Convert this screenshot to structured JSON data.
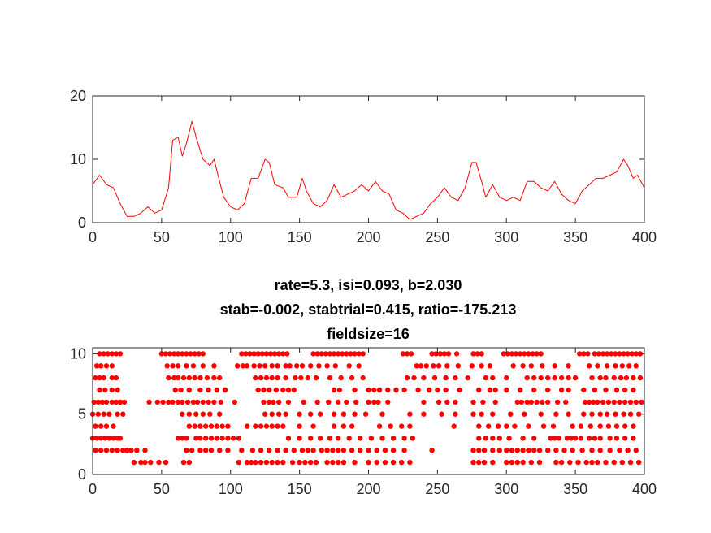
{
  "chart_data": [
    {
      "type": "line",
      "xlim": [
        0,
        400
      ],
      "ylim": [
        0,
        20
      ],
      "xticks": [
        0,
        50,
        100,
        150,
        200,
        250,
        300,
        350,
        400
      ],
      "yticks": [
        0,
        10,
        20
      ],
      "color": "#ff0000",
      "grid": false,
      "x": [
        0,
        5,
        10,
        15,
        20,
        25,
        30,
        35,
        40,
        45,
        50,
        55,
        58,
        62,
        65,
        68,
        72,
        75,
        80,
        85,
        88,
        92,
        95,
        100,
        105,
        110,
        115,
        120,
        125,
        128,
        132,
        138,
        142,
        148,
        152,
        155,
        160,
        165,
        170,
        175,
        180,
        185,
        190,
        195,
        200,
        205,
        210,
        215,
        220,
        225,
        230,
        235,
        240,
        245,
        250,
        255,
        260,
        265,
        270,
        275,
        278,
        282,
        285,
        290,
        295,
        300,
        305,
        310,
        315,
        320,
        325,
        330,
        335,
        340,
        345,
        350,
        355,
        360,
        365,
        370,
        375,
        380,
        385,
        388,
        392,
        395,
        400
      ],
      "y": [
        6,
        7.5,
        6,
        5.5,
        3,
        1,
        1,
        1.5,
        2.5,
        1.5,
        2,
        5.5,
        13,
        13.5,
        10.5,
        12.5,
        16,
        13.5,
        10,
        9,
        10,
        6.5,
        4,
        2.5,
        2,
        3,
        7,
        7,
        10,
        9.5,
        6,
        5.5,
        4,
        4,
        7,
        5,
        3,
        2.5,
        3.5,
        6,
        4,
        4.5,
        5,
        6,
        5,
        6.5,
        5,
        4.5,
        2,
        1.5,
        0.5,
        1,
        1.5,
        3,
        4,
        5.5,
        4,
        3.5,
        5.5,
        9.5,
        9.5,
        6.5,
        4,
        6,
        4,
        3.5,
        4,
        3.5,
        6.5,
        6.5,
        5.5,
        5,
        6.5,
        4.5,
        3.5,
        3,
        5,
        6,
        7,
        7,
        7.5,
        8,
        10,
        9,
        7,
        7.5,
        5.5
      ]
    },
    {
      "type": "scatter",
      "title": [
        "rate=5.3, isi=0.093, b=2.030",
        "stab=-0.002, stabtrial=0.415, ratio=-175.213",
        "fieldsize=16"
      ],
      "xlim": [
        0,
        400
      ],
      "ylim": [
        0,
        10.5
      ],
      "xticks": [
        0,
        50,
        100,
        150,
        200,
        250,
        300,
        350,
        400
      ],
      "yticks": [
        0,
        5,
        10
      ],
      "color": "#ff0000",
      "grid": false,
      "series": [
        {
          "y": 10,
          "x": [
            5,
            8,
            11,
            14,
            17,
            20,
            50,
            53,
            56,
            59,
            62,
            65,
            68,
            71,
            74,
            77,
            80,
            108,
            111,
            114,
            117,
            120,
            123,
            126,
            129,
            132,
            135,
            138,
            141,
            160,
            163,
            166,
            169,
            172,
            175,
            178,
            181,
            184,
            187,
            190,
            193,
            196,
            225,
            228,
            231,
            246,
            249,
            252,
            255,
            258,
            264,
            276,
            279,
            282,
            298,
            301,
            304,
            307,
            310,
            313,
            316,
            319,
            322,
            325,
            353,
            356,
            359,
            364,
            367,
            370,
            373,
            376,
            379,
            382,
            385,
            388,
            391,
            394,
            397
          ]
        },
        {
          "y": 9,
          "x": [
            3,
            6,
            10,
            14,
            54,
            58,
            62,
            68,
            73,
            80,
            88,
            105,
            109,
            112,
            117,
            121,
            125,
            130,
            134,
            140,
            143,
            148,
            152,
            158,
            164,
            170,
            176,
            186,
            193,
            235,
            238,
            242,
            247,
            251,
            257,
            265,
            275,
            282,
            288,
            305,
            312,
            318,
            326,
            335,
            345,
            360,
            366,
            373,
            379,
            384,
            389,
            394
          ]
        },
        {
          "y": 8,
          "x": [
            2,
            5,
            8,
            14,
            17,
            55,
            59,
            62,
            66,
            70,
            74,
            78,
            83,
            88,
            92,
            118,
            122,
            126,
            130,
            134,
            140,
            147,
            151,
            156,
            162,
            172,
            180,
            188,
            196,
            228,
            233,
            240,
            248,
            256,
            263,
            272,
            285,
            290,
            300,
            315,
            320,
            325,
            330,
            335,
            340,
            345,
            350,
            362,
            368,
            372,
            378,
            383,
            387,
            392,
            397
          ]
        },
        {
          "y": 7,
          "x": [
            5,
            9,
            14,
            18,
            60,
            64,
            70,
            78,
            84,
            90,
            96,
            120,
            124,
            128,
            133,
            138,
            142,
            146,
            175,
            179,
            190,
            200,
            204,
            208,
            214,
            220,
            226,
            236,
            244,
            250,
            256,
            266,
            280,
            288,
            292,
            300,
            310,
            320,
            330,
            340,
            345,
            356,
            364,
            372,
            380,
            386,
            392
          ]
        },
        {
          "y": 6,
          "x": [
            1,
            4,
            7,
            10,
            14,
            17,
            20,
            23,
            41,
            47,
            51,
            55,
            58,
            62,
            65,
            69,
            73,
            76,
            80,
            84,
            88,
            93,
            103,
            124,
            128,
            131,
            135,
            142,
            153,
            163,
            171,
            178,
            184,
            191,
            200,
            204,
            207,
            214,
            240,
            251,
            257,
            263,
            276,
            283,
            292,
            308,
            311,
            315,
            318,
            322,
            326,
            330,
            337,
            343,
            357,
            360,
            363,
            366,
            370,
            374,
            378,
            382,
            386,
            390,
            394,
            398
          ]
        },
        {
          "y": 5,
          "x": [
            0,
            4,
            8,
            12,
            18,
            22,
            65,
            70,
            75,
            80,
            85,
            92,
            125,
            130,
            135,
            140,
            150,
            158,
            165,
            175,
            182,
            190,
            198,
            210,
            230,
            240,
            253,
            263,
            276,
            282,
            290,
            303,
            313,
            325,
            336,
            345,
            356,
            362,
            368,
            373,
            379,
            385,
            390,
            396
          ]
        },
        {
          "y": 4,
          "x": [
            2,
            6,
            10,
            15,
            70,
            74,
            78,
            82,
            86,
            90,
            94,
            98,
            112,
            118,
            122,
            126,
            130,
            134,
            138,
            150,
            160,
            175,
            182,
            188,
            208,
            216,
            224,
            230,
            262,
            280,
            287,
            294,
            300,
            306,
            316,
            327,
            334,
            348,
            354,
            361,
            368,
            374,
            380,
            386,
            392
          ]
        },
        {
          "y": 3,
          "x": [
            0,
            3,
            6,
            9,
            12,
            15,
            18,
            20,
            62,
            65,
            68,
            75,
            78,
            82,
            86,
            90,
            94,
            98,
            102,
            106,
            142,
            150,
            158,
            165,
            172,
            178,
            186,
            194,
            202,
            210,
            218,
            226,
            232,
            280,
            285,
            290,
            295,
            302,
            312,
            320,
            332,
            335,
            338,
            344,
            347,
            350,
            354,
            360,
            364,
            368,
            375,
            380,
            386,
            392
          ]
        },
        {
          "y": 2,
          "x": [
            2,
            6,
            10,
            14,
            18,
            22,
            25,
            28,
            32,
            38,
            68,
            72,
            78,
            82,
            86,
            92,
            98,
            108,
            116,
            122,
            128,
            134,
            140,
            146,
            152,
            156,
            160,
            166,
            170,
            174,
            178,
            182,
            188,
            194,
            200,
            206,
            212,
            218,
            226,
            246,
            276,
            280,
            284,
            290,
            295,
            300,
            304,
            308,
            312,
            316,
            320,
            324,
            330,
            336,
            342,
            348,
            355,
            362,
            368,
            375,
            382,
            388,
            394
          ]
        },
        {
          "y": 1,
          "x": [
            30,
            35,
            38,
            42,
            48,
            53,
            66,
            70,
            106,
            112,
            115,
            118,
            122,
            126,
            130,
            134,
            138,
            145,
            150,
            154,
            158,
            162,
            170,
            174,
            178,
            182,
            190,
            200,
            206,
            212,
            218,
            224,
            230,
            276,
            280,
            284,
            290,
            300,
            304,
            308,
            312,
            318,
            324,
            336,
            340,
            346,
            352,
            358,
            362,
            366,
            372,
            378,
            384,
            390,
            396
          ]
        }
      ]
    }
  ]
}
